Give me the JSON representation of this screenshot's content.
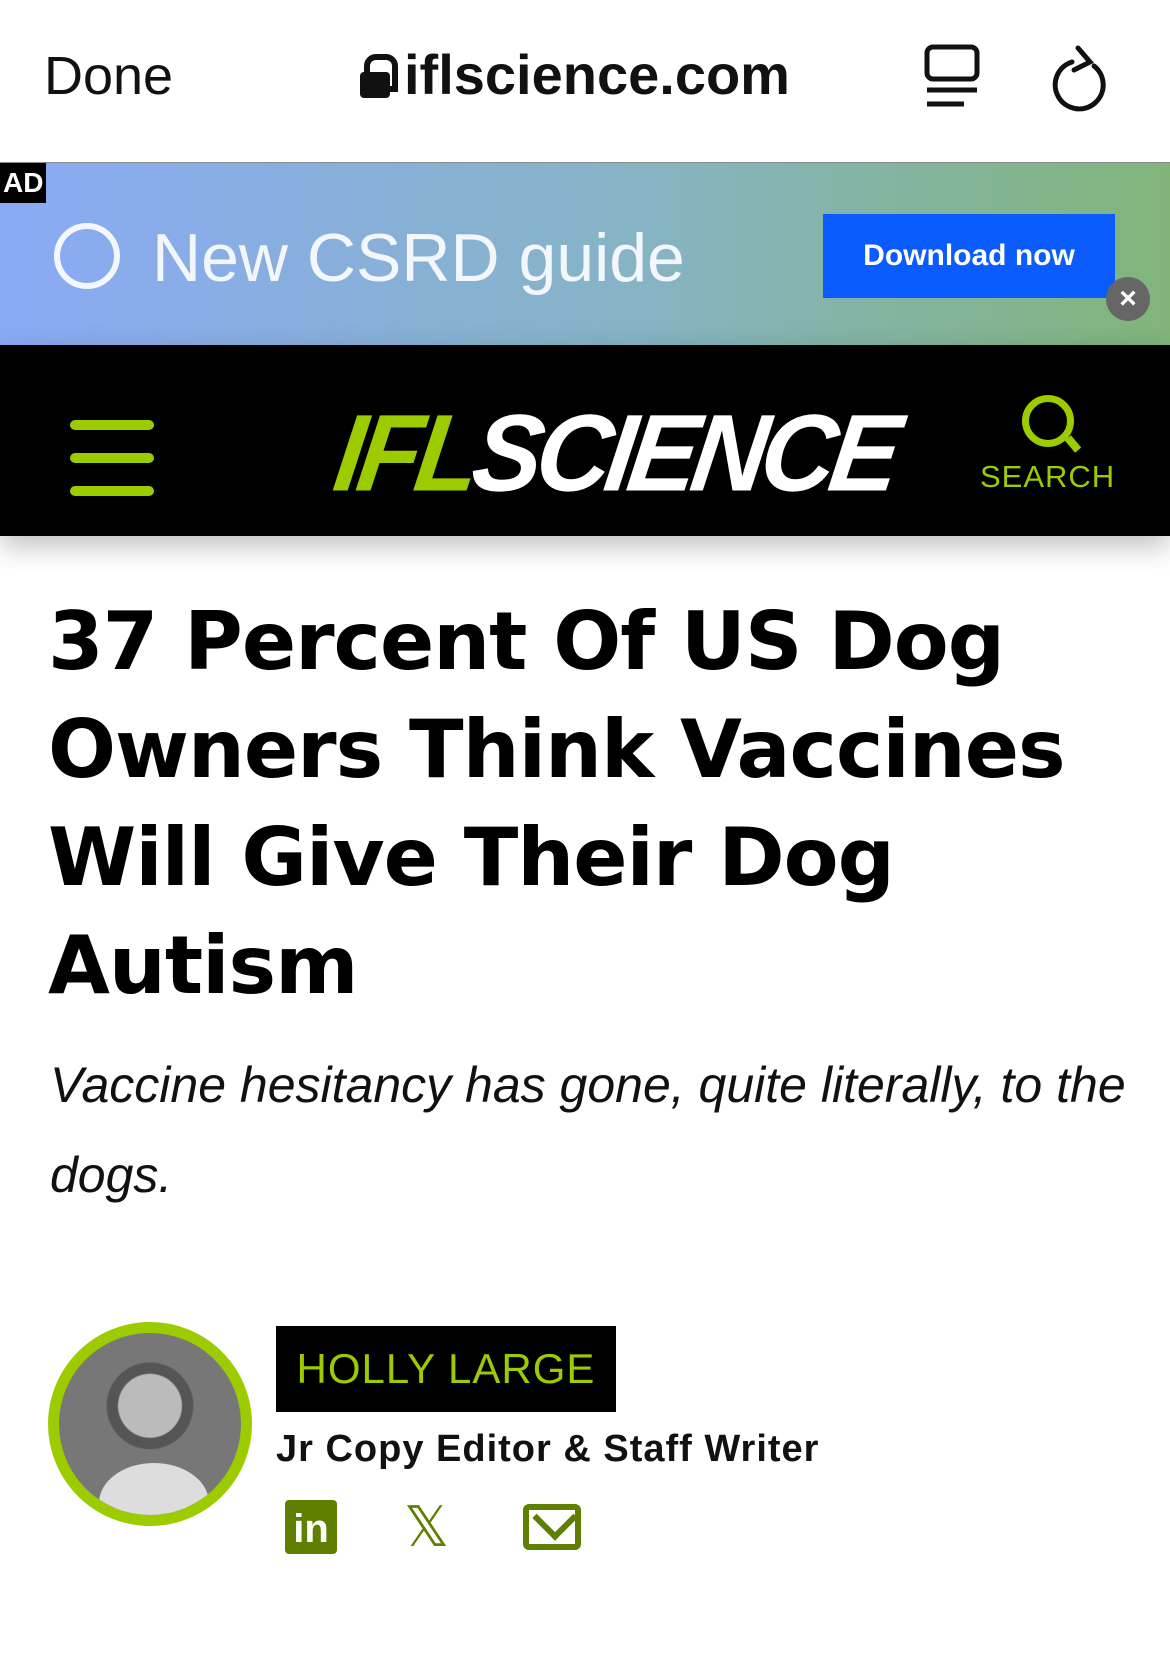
{
  "browser": {
    "done_label": "Done",
    "url": "iflscience.com"
  },
  "ad": {
    "tag": "AD",
    "headline": "New CSRD guide",
    "cta": "Download now",
    "close": "×"
  },
  "nav": {
    "logo_prefix": "IFL",
    "logo_suffix": "SCIENCE",
    "search_label": "SEARCH"
  },
  "article": {
    "title": "37 Percent Of US Dog Owners Think Vaccines Will Give Their Dog Autism",
    "subtitle": "Vaccine hesitancy has gone, quite literally, to the dogs."
  },
  "author": {
    "name": "HOLLY LARGE",
    "role": "Jr Copy Editor & Staff Writer",
    "social": {
      "linkedin": "in",
      "x": "𝕏"
    }
  },
  "colors": {
    "accent": "#9ccc00",
    "social": "#5e7f00",
    "ad_button": "#0a5cff"
  }
}
